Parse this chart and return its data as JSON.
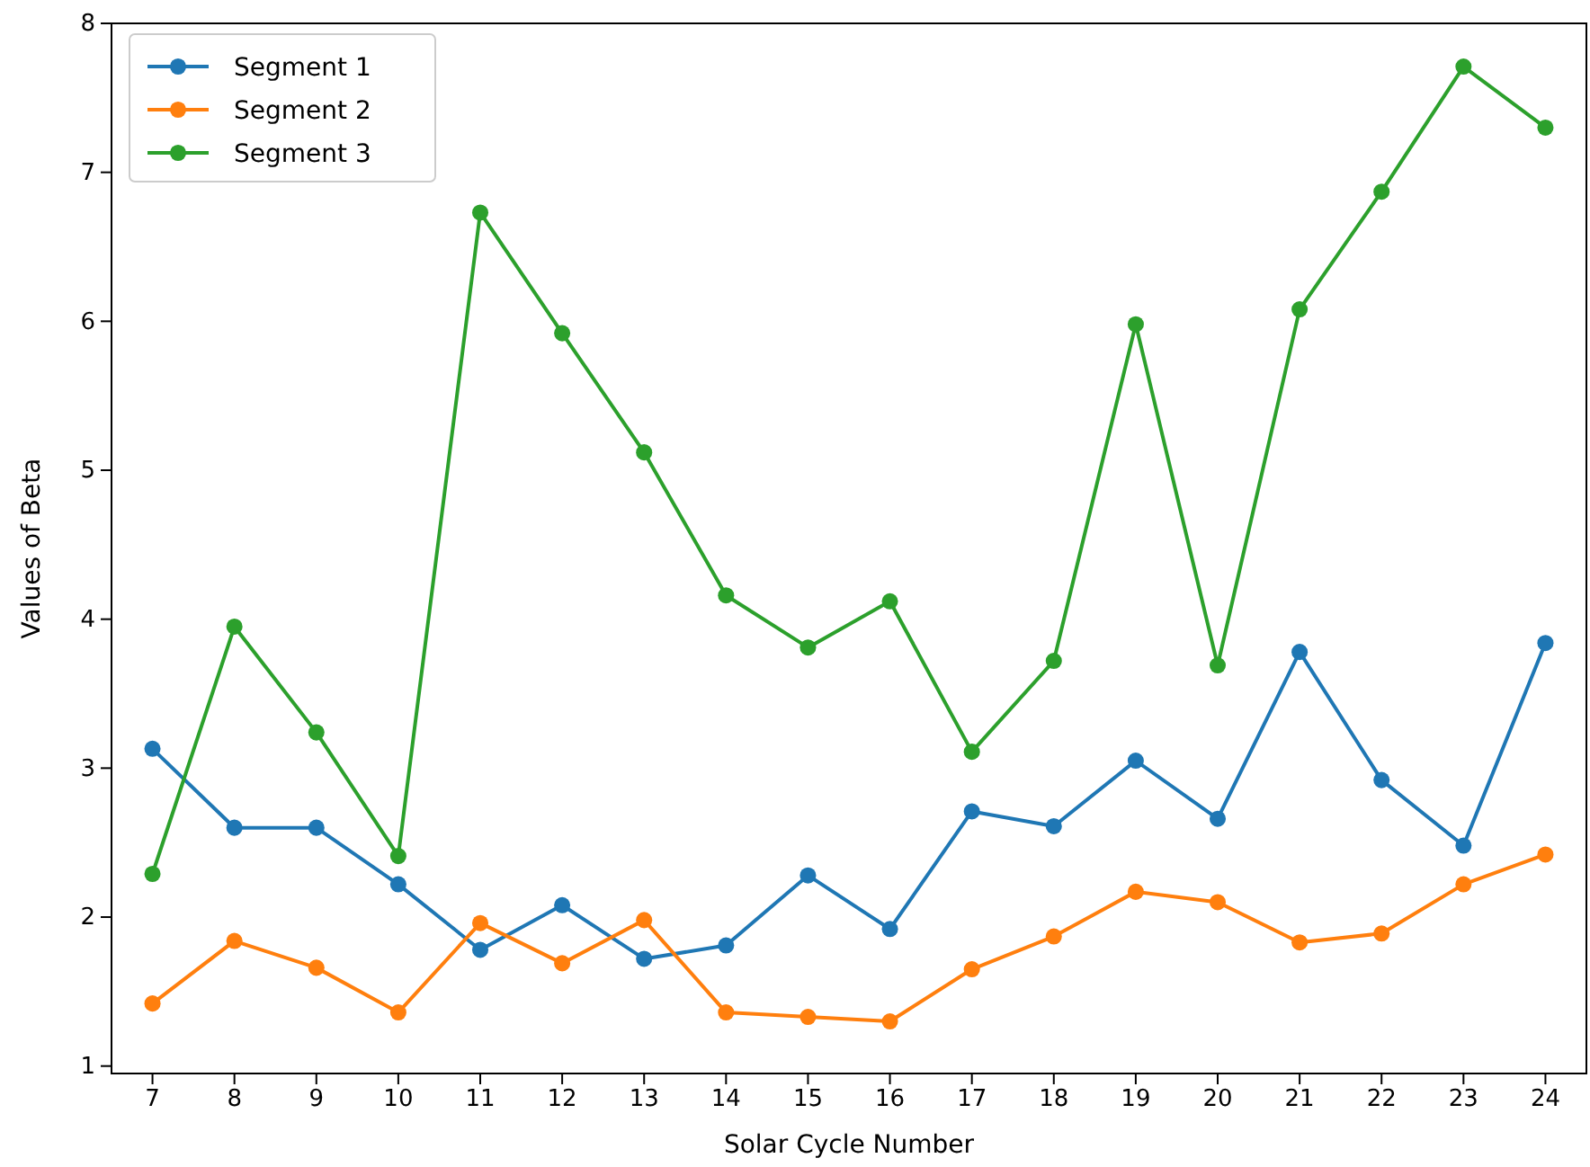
{
  "chart_data": {
    "type": "line",
    "xlabel": "Solar Cycle Number",
    "ylabel": "Values of Beta",
    "categories": [
      "7",
      "8",
      "9",
      "10",
      "11",
      "12",
      "13",
      "14",
      "15",
      "16",
      "17",
      "18",
      "19",
      "20",
      "21",
      "22",
      "23",
      "24"
    ],
    "series": [
      {
        "name": "Segment 1",
        "color": "#1f77b4",
        "values": [
          3.13,
          2.6,
          2.6,
          2.22,
          1.78,
          2.08,
          1.72,
          1.81,
          2.28,
          1.92,
          2.71,
          2.61,
          3.05,
          2.66,
          3.78,
          2.92,
          2.48,
          3.84
        ]
      },
      {
        "name": "Segment 2",
        "color": "#ff7f0e",
        "values": [
          1.42,
          1.84,
          1.66,
          1.36,
          1.96,
          1.69,
          1.98,
          1.36,
          1.33,
          1.3,
          1.65,
          1.87,
          2.17,
          2.1,
          1.83,
          1.89,
          2.22,
          2.42
        ]
      },
      {
        "name": "Segment 3",
        "color": "#2ca02c",
        "values": [
          2.29,
          3.95,
          3.24,
          2.41,
          6.73,
          5.92,
          5.12,
          4.16,
          3.81,
          4.12,
          3.11,
          3.72,
          5.98,
          3.69,
          6.08,
          6.87,
          7.71,
          7.3
        ]
      }
    ],
    "ylim": [
      0.95,
      8
    ],
    "yticks": [
      1,
      2,
      3,
      4,
      5,
      6,
      7,
      8
    ],
    "grid": false,
    "legend": "top left",
    "marker": "circle",
    "line_style": "solid"
  }
}
